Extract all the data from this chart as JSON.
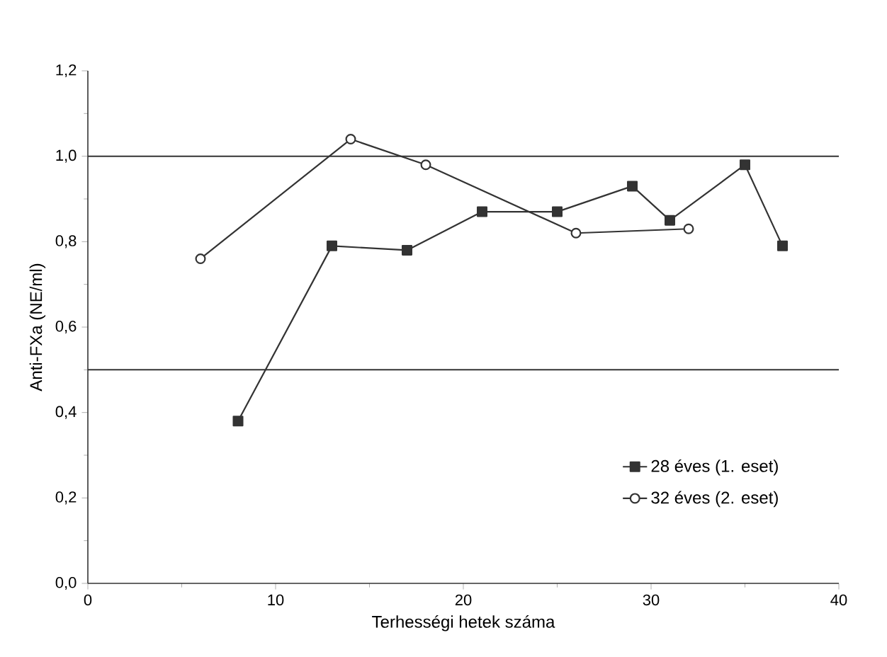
{
  "chart_data": {
    "type": "line",
    "xlabel": "Terhességi hetek száma",
    "ylabel": "Anti-FXa (NE/ml)",
    "xlim": [
      0,
      40
    ],
    "xticks": [
      0,
      10,
      20,
      30,
      40
    ],
    "ylim": [
      0,
      1.2
    ],
    "yticks": [
      {
        "value": 0,
        "label": "0,0"
      },
      {
        "value": 0.2,
        "label": "0,2"
      },
      {
        "value": 0.4,
        "label": "0,4"
      },
      {
        "value": 0.6,
        "label": "0,6"
      },
      {
        "value": 0.8,
        "label": "0,8"
      },
      {
        "value": 1.0,
        "label": "1,0"
      },
      {
        "value": 1.2,
        "label": "1,2"
      }
    ],
    "series": [
      {
        "name": "28 éves (1. eset)",
        "color": "#333333",
        "marker": "square",
        "x": [
          8,
          13,
          17,
          21,
          25,
          29,
          31,
          35,
          37
        ],
        "values": [
          0.38,
          0.79,
          0.78,
          0.87,
          0.87,
          0.93,
          0.85,
          0.98,
          0.79
        ]
      },
      {
        "name": "32 éves (2. eset)",
        "color": "#333333",
        "marker": "circle",
        "x": [
          6,
          14,
          18,
          26,
          32
        ],
        "values": [
          0.76,
          1.04,
          0.98,
          0.82,
          0.83
        ]
      }
    ],
    "ref_lines": [
      {
        "axis": "y",
        "value": 1.0,
        "color": "#333333"
      },
      {
        "axis": "y",
        "value": 0.5,
        "color": "#333333"
      }
    ],
    "legend": "bottom right",
    "grid": false
  }
}
